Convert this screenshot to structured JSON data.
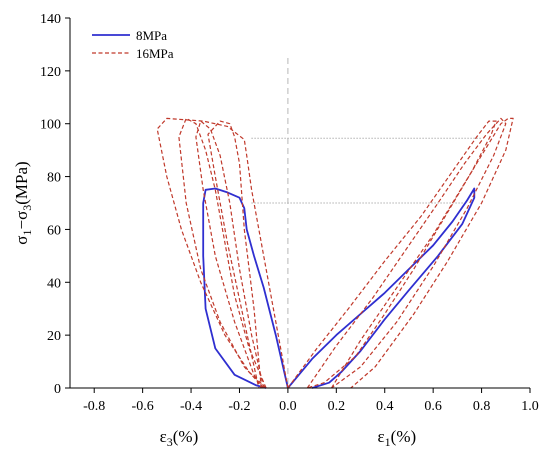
{
  "chart_data": {
    "type": "line",
    "title": "",
    "xlabel_left": "ε3(%)",
    "xlabel_right": "ε1(%)",
    "ylabel": "σ1−σ3(MPa)",
    "xlim": [
      -0.9,
      1.0
    ],
    "ylim": [
      0,
      140
    ],
    "x_ticks": [
      -0.8,
      -0.6,
      -0.4,
      -0.2,
      0.0,
      0.2,
      0.4,
      0.6,
      0.8,
      1.0
    ],
    "x_tick_labels": [
      "-0.8",
      "-0.6",
      "-0.4",
      "-0.2",
      "0.0",
      "0.2",
      "0.4",
      "0.6",
      "0.8",
      "1.0"
    ],
    "y_ticks": [
      0,
      20,
      40,
      60,
      80,
      100,
      120,
      140
    ],
    "y_tick_labels": [
      "0",
      "20",
      "40",
      "60",
      "80",
      "100",
      "120",
      "140"
    ],
    "legend_position": "top-left",
    "reference_lines": [
      {
        "style": "vertical-dashed",
        "x": 0.0
      },
      {
        "style": "horizontal-dotted",
        "y": 70,
        "x_from": -0.15,
        "x_to": 0.73
      },
      {
        "style": "horizontal-dotted",
        "y": 94.5,
        "x_from": -0.15,
        "x_to": 0.8
      }
    ],
    "series": [
      {
        "name": "8MPa",
        "color": "#2f2fd0",
        "dash": "solid",
        "segments": [
          [
            [
              0.0,
              0
            ],
            [
              -0.05,
              20
            ],
            [
              -0.1,
              38
            ],
            [
              -0.14,
              50
            ],
            [
              -0.17,
              60
            ],
            [
              -0.18,
              68
            ],
            [
              -0.2,
              72
            ],
            [
              -0.25,
              74
            ],
            [
              -0.3,
              75.5
            ],
            [
              -0.34,
              75
            ],
            [
              -0.35,
              70
            ],
            [
              -0.35,
              50
            ],
            [
              -0.34,
              30
            ],
            [
              -0.3,
              15
            ],
            [
              -0.22,
              5
            ],
            [
              -0.13,
              1
            ],
            [
              -0.09,
              0
            ]
          ],
          [
            [
              0.0,
              0
            ],
            [
              0.1,
              11
            ],
            [
              0.2,
              20
            ],
            [
              0.3,
              28
            ],
            [
              0.4,
              36
            ],
            [
              0.5,
              45
            ],
            [
              0.6,
              54
            ],
            [
              0.68,
              63
            ],
            [
              0.74,
              71
            ],
            [
              0.77,
              75.5
            ],
            [
              0.77,
              72
            ],
            [
              0.72,
              62
            ],
            [
              0.62,
              50
            ],
            [
              0.5,
              37
            ],
            [
              0.4,
              26
            ],
            [
              0.3,
              14
            ],
            [
              0.22,
              6
            ],
            [
              0.17,
              2
            ],
            [
              0.1,
              0
            ]
          ]
        ]
      },
      {
        "name": "16MPa",
        "color": "#c0392b",
        "dash": "dashed",
        "segments": [
          [
            [
              0.0,
              0
            ],
            [
              -0.05,
              25
            ],
            [
              -0.1,
              50
            ],
            [
              -0.15,
              75
            ],
            [
              -0.17,
              88
            ],
            [
              -0.18,
              94
            ],
            [
              -0.25,
              99
            ],
            [
              -0.35,
              101
            ],
            [
              -0.5,
              102
            ],
            [
              -0.54,
              98
            ],
            [
              -0.5,
              80
            ],
            [
              -0.44,
              60
            ],
            [
              -0.36,
              40
            ],
            [
              -0.26,
              20
            ],
            [
              -0.16,
              6
            ],
            [
              -0.09,
              0
            ]
          ],
          [
            [
              -0.09,
              0
            ],
            [
              -0.16,
              15
            ],
            [
              -0.22,
              35
            ],
            [
              -0.26,
              55
            ],
            [
              -0.3,
              75
            ],
            [
              -0.34,
              90
            ],
            [
              -0.38,
              100
            ],
            [
              -0.42,
              102
            ],
            [
              -0.45,
              95
            ],
            [
              -0.42,
              70
            ],
            [
              -0.36,
              45
            ],
            [
              -0.28,
              25
            ],
            [
              -0.18,
              8
            ],
            [
              -0.1,
              0
            ]
          ],
          [
            [
              -0.1,
              0
            ],
            [
              -0.15,
              20
            ],
            [
              -0.2,
              45
            ],
            [
              -0.24,
              70
            ],
            [
              -0.28,
              88
            ],
            [
              -0.32,
              98
            ],
            [
              -0.36,
              101
            ],
            [
              -0.38,
              95
            ],
            [
              -0.35,
              75
            ],
            [
              -0.3,
              50
            ],
            [
              -0.22,
              25
            ],
            [
              -0.14,
              5
            ],
            [
              -0.11,
              0
            ]
          ],
          [
            [
              -0.11,
              0
            ],
            [
              -0.14,
              30
            ],
            [
              -0.18,
              60
            ],
            [
              -0.2,
              85
            ],
            [
              -0.22,
              95
            ],
            [
              -0.24,
              100
            ],
            [
              -0.28,
              101
            ],
            [
              -0.33,
              96
            ],
            [
              -0.3,
              80
            ],
            [
              -0.25,
              55
            ],
            [
              -0.18,
              25
            ],
            [
              -0.12,
              0
            ]
          ],
          [
            [
              0.0,
              0
            ],
            [
              0.12,
              15
            ],
            [
              0.25,
              30
            ],
            [
              0.4,
              48
            ],
            [
              0.55,
              65
            ],
            [
              0.68,
              82
            ],
            [
              0.78,
              95
            ],
            [
              0.83,
              101
            ],
            [
              0.86,
              101
            ],
            [
              0.84,
              96
            ],
            [
              0.76,
              82
            ],
            [
              0.65,
              65
            ],
            [
              0.52,
              45
            ],
            [
              0.4,
              28
            ],
            [
              0.28,
              12
            ],
            [
              0.15,
              2
            ],
            [
              0.08,
              0
            ]
          ],
          [
            [
              0.08,
              0
            ],
            [
              0.2,
              16
            ],
            [
              0.35,
              34
            ],
            [
              0.5,
              54
            ],
            [
              0.62,
              70
            ],
            [
              0.73,
              85
            ],
            [
              0.82,
              96
            ],
            [
              0.88,
              102
            ],
            [
              0.9,
              100
            ],
            [
              0.85,
              88
            ],
            [
              0.74,
              68
            ],
            [
              0.6,
              46
            ],
            [
              0.45,
              25
            ],
            [
              0.3,
              8
            ],
            [
              0.18,
              0
            ]
          ],
          [
            [
              0.18,
              0
            ],
            [
              0.3,
              18
            ],
            [
              0.45,
              38
            ],
            [
              0.6,
              58
            ],
            [
              0.72,
              76
            ],
            [
              0.82,
              91
            ],
            [
              0.88,
              100
            ],
            [
              0.91,
              102
            ],
            [
              0.93,
              102
            ],
            [
              0.9,
              90
            ],
            [
              0.8,
              70
            ],
            [
              0.66,
              48
            ],
            [
              0.52,
              28
            ],
            [
              0.36,
              8
            ],
            [
              0.26,
              0
            ]
          ]
        ]
      }
    ]
  }
}
